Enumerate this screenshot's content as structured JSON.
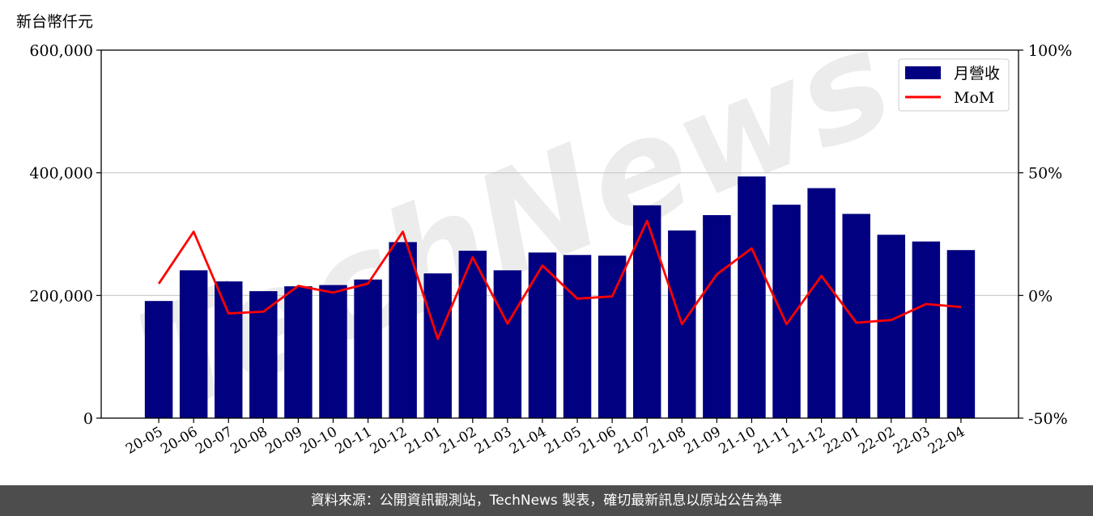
{
  "unit_label": "新台幣仟元",
  "footer_text": "資料來源：公開資訊觀測站，TechNews 製表，確切最新訊息以原站公告為準",
  "watermark_text": "TechNews",
  "chart_data": {
    "type": "bar",
    "categories": [
      "20-05",
      "20-06",
      "20-07",
      "20-08",
      "20-09",
      "20-10",
      "20-11",
      "20-12",
      "21-01",
      "21-02",
      "21-03",
      "21-04",
      "21-05",
      "21-06",
      "21-07",
      "21-08",
      "21-09",
      "21-10",
      "21-11",
      "21-12",
      "22-01",
      "22-02",
      "22-03",
      "22-04"
    ],
    "series": [
      {
        "name": "月營收",
        "type": "bar",
        "axis": "left",
        "color": "#000080",
        "values": [
          191000,
          241000,
          223000,
          207000,
          215000,
          217000,
          226000,
          287000,
          236000,
          273000,
          241000,
          270000,
          266000,
          265000,
          347000,
          306000,
          331000,
          394000,
          348000,
          375000,
          333000,
          299000,
          288000,
          274000
        ]
      },
      {
        "name": "MoM",
        "type": "line",
        "axis": "right",
        "color": "#ff0000",
        "values": [
          4.8,
          26.0,
          -7.3,
          -6.6,
          3.9,
          1.2,
          4.9,
          26.0,
          -17.7,
          15.6,
          -11.5,
          12.2,
          -1.3,
          -0.4,
          30.4,
          -11.7,
          8.6,
          19.2,
          -11.7,
          8.0,
          -11.1,
          -10.0,
          -3.5,
          -4.7
        ]
      }
    ],
    "left_axis": {
      "ylim": [
        0,
        600000
      ],
      "ticks": [
        "0",
        "200,000",
        "400,000",
        "600,000"
      ],
      "tick_values": [
        0,
        200000,
        400000,
        600000
      ]
    },
    "right_axis": {
      "ylim": [
        -50,
        100
      ],
      "ticks": [
        "-50%",
        "0%",
        "50%",
        "100%"
      ],
      "tick_values": [
        -50,
        0,
        50,
        100
      ]
    },
    "grid": true,
    "legend_position": "top-right"
  }
}
